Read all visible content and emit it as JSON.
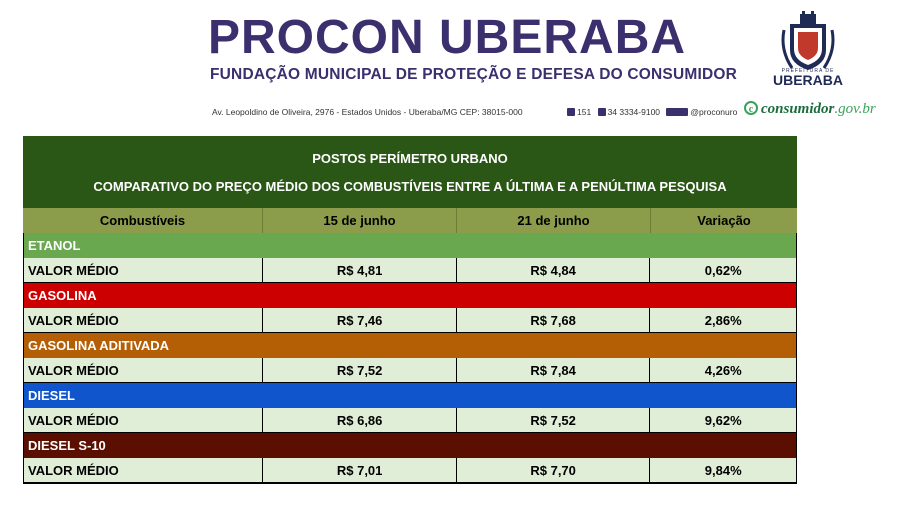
{
  "header": {
    "title": "PROCON UBERABA",
    "subtitle": "FUNDAÇÃO MUNICIPAL DE PROTEÇÃO E DEFESA DO CONSUMIDOR",
    "address": "Av. Leopoldino de Oliveira, 2976 - Estados Unidos - Uberaba/MG CEP: 38015-000",
    "phone1": "151",
    "phone2": "34 3334-9100",
    "social": "@proconuro",
    "brand_main": "consumidor",
    "brand_suffix": ".gov.br",
    "crest_small": "PREFEITURA DE",
    "crest_label": "UBERABA"
  },
  "table": {
    "title": "POSTOS PERÍMETRO URBANO",
    "subtitle": "COMPARATIVO DO PREÇO MÉDIO DOS COMBUSTÍVEIS ENTRE A ÚLTIMA E A PENÚLTIMA PESQUISA",
    "columns": [
      "Combustíveis",
      "15 de junho",
      "21 de junho",
      "Variação"
    ],
    "groups": [
      {
        "name": "ETANOL",
        "color": "#6aa84f",
        "row": [
          "VALOR MÉDIO",
          "R$ 4,81",
          "R$ 4,84",
          "0,62%"
        ]
      },
      {
        "name": "GASOLINA",
        "color": "#cc0000",
        "row": [
          "VALOR MÉDIO",
          "R$ 7,46",
          "R$ 7,68",
          "2,86%"
        ]
      },
      {
        "name": "GASOLINA ADITIVADA",
        "color": "#b45f06",
        "row": [
          "VALOR MÉDIO",
          "R$ 7,52",
          "R$ 7,84",
          "4,26%"
        ]
      },
      {
        "name": "DIESEL",
        "color": "#1155cc",
        "row": [
          "VALOR MÉDIO",
          "R$ 6,86",
          "R$ 7,52",
          "9,62%"
        ]
      },
      {
        "name": "DIESEL S-10",
        "color": "#5b0f00",
        "row": [
          "VALOR MÉDIO",
          "R$ 7,01",
          "R$ 7,70",
          "9,84%"
        ]
      }
    ]
  }
}
